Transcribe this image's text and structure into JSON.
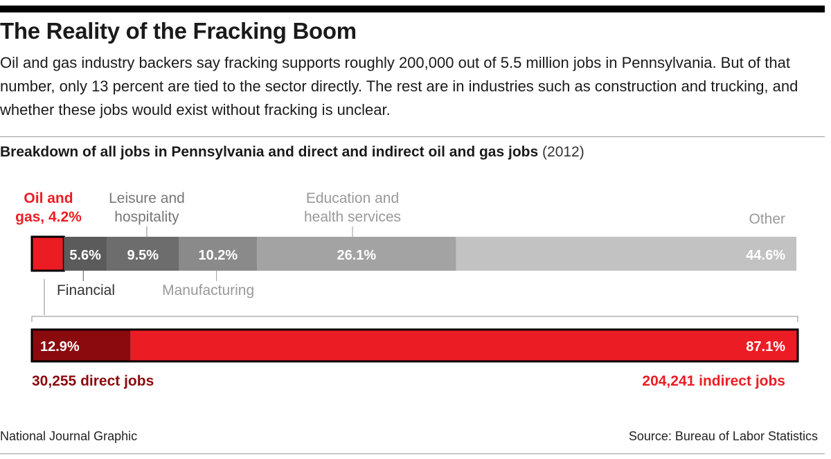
{
  "header": {
    "title": "The Reality of the Fracking Boom",
    "intro": "Oil and gas industry backers say fracking supports roughly 200,000 out of 5.5 million jobs in Pennsylvania. But of that number, only 13 percent are tied to the sector directly. The rest are in industries such as construction and trucking, and whether these jobs would exist without fracking is unclear.",
    "subtitle": "Breakdown of all jobs in Pennsylvania and direct and indirect oil and gas jobs",
    "subtitle_year": "(2012)"
  },
  "colors": {
    "red": "#ec1c24",
    "dark_red": "#8b0a0e",
    "gray_darkest": "#5b5b5b",
    "gray_dark": "#6d6d6d",
    "gray_mid": "#8a8a8a",
    "gray_light": "#a3a3a3",
    "gray_lightest": "#c2c2c2"
  },
  "chart_data": [
    {
      "type": "bar",
      "orientation": "horizontal-stacked",
      "unit": "%",
      "segments": [
        {
          "name": "Oil and gas, 4.2%",
          "value": 4.2,
          "label": "",
          "color": "#ec1c24"
        },
        {
          "name": "Financial",
          "value": 5.6,
          "label": "5.6%",
          "color": "#5b5b5b"
        },
        {
          "name": "Leisure and hospitality",
          "value": 9.5,
          "label": "9.5%",
          "color": "#6d6d6d"
        },
        {
          "name": "Manufacturing",
          "value": 10.2,
          "label": "10.2%",
          "color": "#8a8a8a"
        },
        {
          "name": "Education and health services",
          "value": 26.1,
          "label": "26.1%",
          "color": "#a3a3a3"
        },
        {
          "name": "Other",
          "value": 44.6,
          "label": "44.6%",
          "color": "#c2c2c2"
        }
      ]
    },
    {
      "type": "bar",
      "orientation": "horizontal-stacked",
      "unit": "%",
      "segments": [
        {
          "name": "30,255 direct jobs",
          "value": 12.9,
          "label": "12.9%",
          "color": "#8b0a0e"
        },
        {
          "name": "204,241 indirect jobs",
          "value": 87.1,
          "label": "87.1%",
          "color": "#ec1c24"
        }
      ]
    }
  ],
  "footer": {
    "credit": "National Journal Graphic",
    "source": "Source: Bureau of Labor Statistics"
  }
}
